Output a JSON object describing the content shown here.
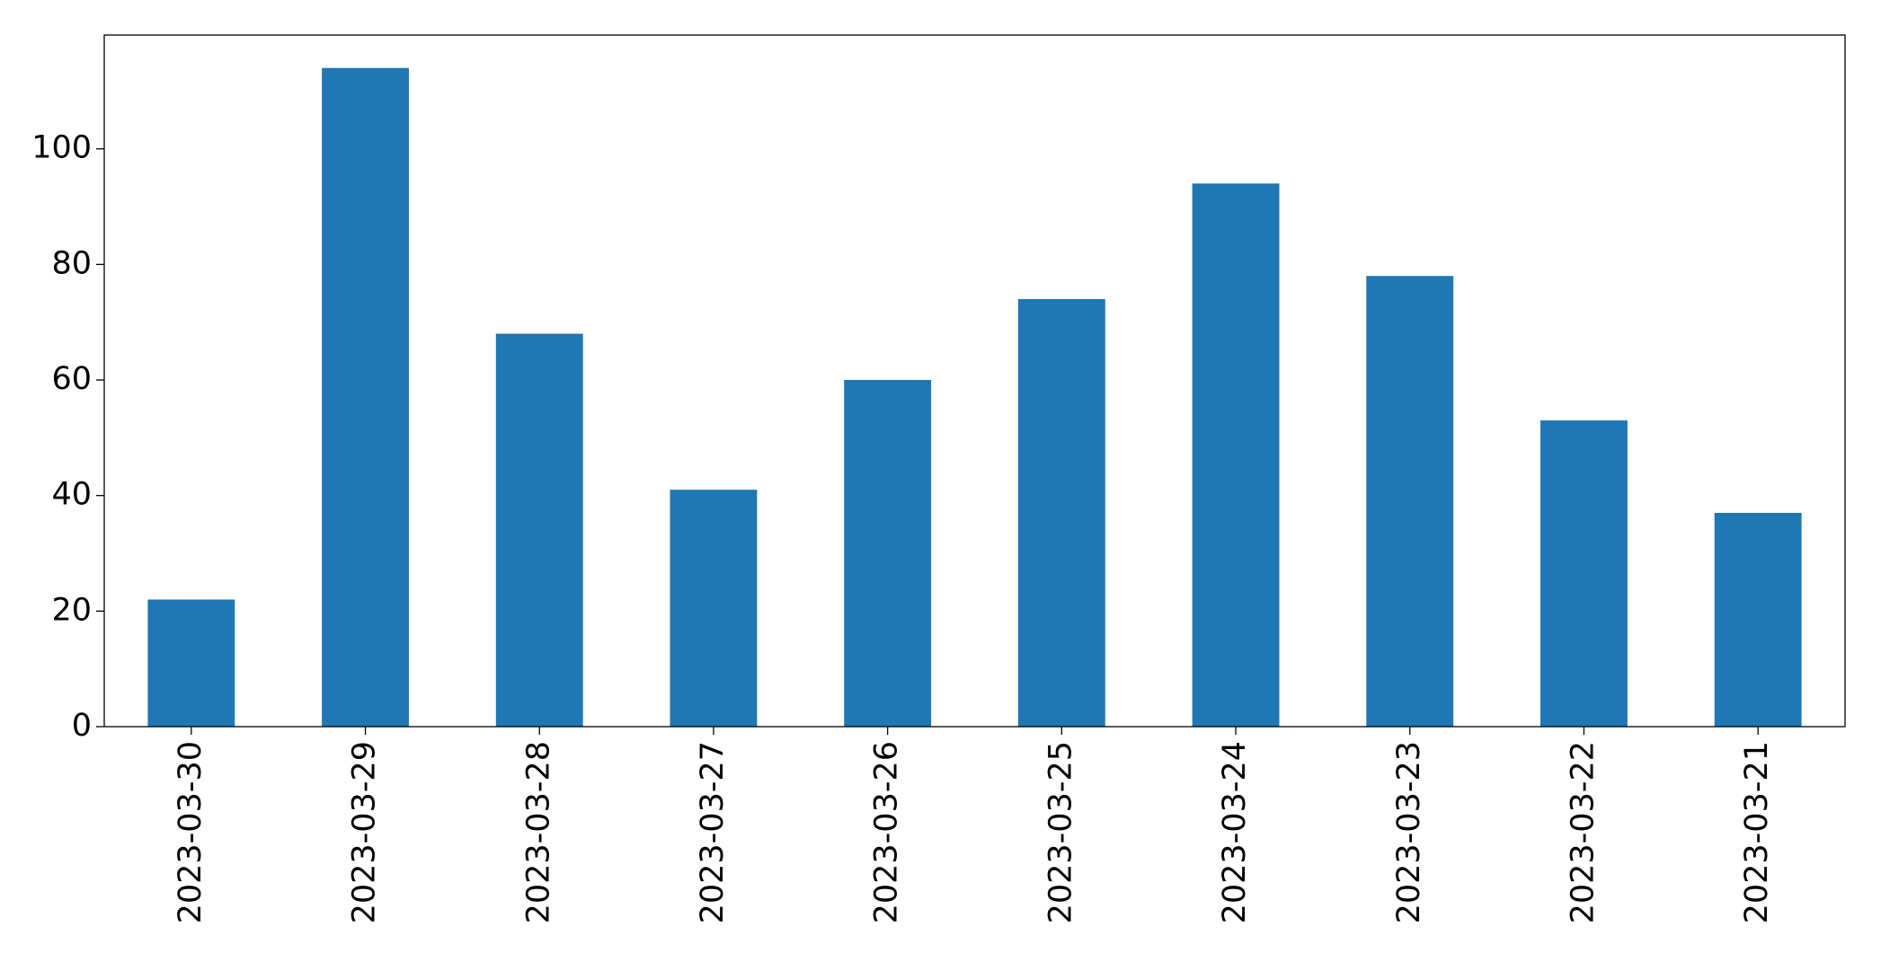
{
  "chart_data": {
    "type": "bar",
    "categories": [
      "2023-03-30",
      "2023-03-29",
      "2023-03-28",
      "2023-03-27",
      "2023-03-26",
      "2023-03-25",
      "2023-03-24",
      "2023-03-23",
      "2023-03-22",
      "2023-03-21"
    ],
    "values": [
      22,
      114,
      68,
      41,
      60,
      74,
      94,
      78,
      53,
      37
    ],
    "color": "#1f77b4",
    "ylim": [
      0,
      119.7
    ],
    "yticks": [
      0,
      20,
      40,
      60,
      80,
      100
    ],
    "grid": false
  }
}
